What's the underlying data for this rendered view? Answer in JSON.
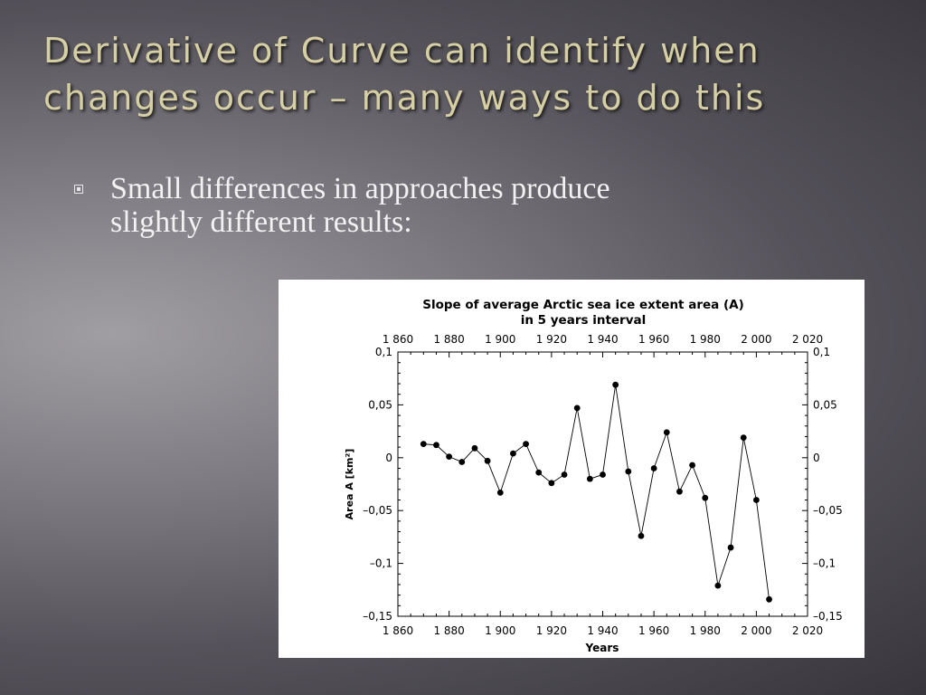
{
  "slide": {
    "title_line1": "Derivative of Curve can identify when",
    "title_line2": "changes occur – many ways to do this",
    "bullet_icon": "square-bullet-icon",
    "bullet_text_line1": "Small differences in approaches  produce",
    "bullet_text_line2": "slightly different results:",
    "colors": {
      "title": "#d6cfa4",
      "bullet_text": "#f2f2f2"
    }
  },
  "chart_data": {
    "type": "line",
    "title_line1": "Slope of average Arctic sea ice extent area (A)",
    "title_line2": "in 5 years interval",
    "xlabel": "Years",
    "ylabel": "Area A [km²]",
    "xlim": [
      1860,
      2020
    ],
    "ylim": [
      -0.15,
      0.1
    ],
    "x_ticks": [
      1860,
      1880,
      1900,
      1920,
      1940,
      1960,
      1980,
      2000,
      2020
    ],
    "x_tick_labels": [
      "1 860",
      "1 880",
      "1 900",
      "1 920",
      "1 940",
      "1 960",
      "1 980",
      "2 000",
      "2 020"
    ],
    "y_ticks": [
      0.1,
      0.05,
      0,
      -0.05,
      -0.1,
      -0.15
    ],
    "y_tick_labels": [
      "0,1",
      "0,05",
      "0",
      "–0,05",
      "–0,1",
      "–0,15"
    ],
    "marker": "filled-circle",
    "line_color": "#000000",
    "grid": false,
    "series": [
      {
        "x": [
          1870,
          1875,
          1880,
          1885,
          1890,
          1895,
          1900,
          1905,
          1910,
          1915,
          1920,
          1925,
          1930,
          1935,
          1940,
          1945,
          1950,
          1955,
          1960,
          1965,
          1970,
          1975,
          1980,
          1985,
          1990,
          1995,
          2000,
          2005
        ],
        "y": [
          0.013,
          0.012,
          0.001,
          -0.004,
          0.009,
          -0.003,
          -0.033,
          0.004,
          0.013,
          -0.014,
          -0.024,
          -0.016,
          0.047,
          -0.02,
          -0.016,
          0.069,
          -0.013,
          -0.074,
          -0.01,
          0.024,
          -0.032,
          -0.007,
          -0.038,
          -0.121,
          -0.085,
          0.019,
          -0.04,
          -0.134
        ]
      }
    ]
  }
}
